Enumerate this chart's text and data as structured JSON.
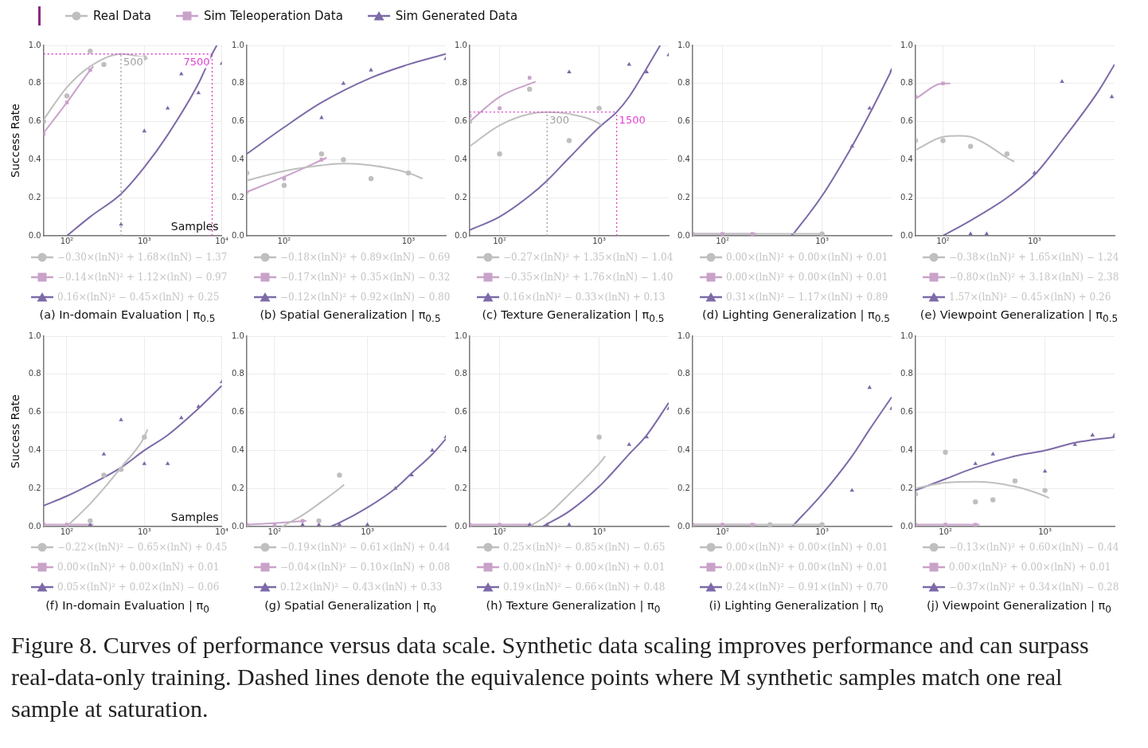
{
  "chart_data": [
    {
      "type": "scatter",
      "title": "(a) In-domain Evaluation | π$_{0.5}$",
      "ylabel": "Success Rate",
      "xlabel": "Samples",
      "log": "x",
      "xlim": [
        50,
        10000
      ],
      "xticks": [
        {
          "value": 100,
          "label": "10²"
        },
        {
          "value": 1000,
          "label": "10³"
        },
        {
          "value": 10000,
          "label": "10⁴"
        }
      ],
      "ylim": [
        0,
        1
      ],
      "yticks": [
        {
          "value": 0,
          "label": "0.0"
        },
        {
          "value": 0.2,
          "label": "0.2"
        },
        {
          "value": 0.4,
          "label": "0.4"
        },
        {
          "value": 0.6,
          "label": "0.6"
        },
        {
          "value": 0.8,
          "label": "0.8"
        },
        {
          "value": 1,
          "label": "1.0"
        }
      ],
      "grid": true,
      "legend": "bottom",
      "ref_lines": [
        {
          "axis": "y",
          "value": 0.955,
          "color": "#e040d0",
          "line_style": "dotted"
        },
        {
          "axis": "x",
          "value": 500,
          "label": "500",
          "color": "#a0a0a0",
          "line_style": "dotted"
        },
        {
          "axis": "x",
          "value": 7500,
          "label": "7500",
          "color": "#e040d0",
          "line_style": "dotted"
        }
      ],
      "annotations": [
        "Figure 8. Curves of performance versus data scale. Synthetic data scaling improves performance and can surpass real-data-only training. Dashed lines denote the equivalence points where M synthetic samples match one real sample at saturation."
      ],
      "series": [
        {
          "type": "scatter",
          "name": "Real Data",
          "color": "#bfbfbf",
          "marker": "circle",
          "x": [
            50,
            100,
            200,
            300,
            1000
          ],
          "values": [
            0.6,
            0.735,
            0.97,
            0.9,
            0.935
          ]
        },
        {
          "type": "scatter",
          "name": "Sim Teleoperation Data",
          "color": "#c9a2c9",
          "marker": "square",
          "x": [
            50,
            100,
            200
          ],
          "values": [
            0.535,
            0.7,
            0.87
          ]
        },
        {
          "type": "scatter",
          "name": "Sim Generated Data",
          "color": "#7d6aa8",
          "marker": "triangle",
          "x": [
            500,
            1000,
            2000,
            3000,
            5000,
            10000
          ],
          "values": [
            0.06,
            0.55,
            0.67,
            0.85,
            0.75,
            0.905
          ]
        },
        {
          "type": "line",
          "name": "−0.30×(lnN)² + 1.68×(lnN) − 1.37",
          "color": "#bfbfbf",
          "x": [
            50,
            100,
            200,
            500,
            1000,
            1100
          ],
          "values": [
            0.61,
            0.78,
            0.89,
            0.955,
            0.935,
            0.93
          ]
        },
        {
          "type": "line",
          "name": "−0.14×(lnN)² + 1.12×(lnN) − 0.97",
          "color": "#c9a2c9",
          "x": [
            50,
            100,
            200,
            220
          ],
          "values": [
            0.54,
            0.7,
            0.87,
            0.89
          ]
        },
        {
          "type": "line",
          "name": "0.16×(lnN)² − 0.45×(lnN) + 0.25",
          "color": "#7d6aa8",
          "x": [
            100,
            200,
            500,
            1000,
            2000,
            5000,
            7500,
            8600
          ],
          "values": [
            0,
            0.1,
            0.22,
            0.36,
            0.53,
            0.8,
            0.955,
            1
          ]
        }
      ]
    },
    {
      "type": "scatter",
      "title": "(b) Spatial Generalization | π$_{0.5}$",
      "log": "x",
      "xlim": [
        50,
        2000
      ],
      "xticks": [
        {
          "value": 100,
          "label": "10²"
        },
        {
          "value": 1000,
          "label": "10³"
        }
      ],
      "ylim": [
        0,
        1
      ],
      "yticks": [
        {
          "value": 0,
          "label": "0.0"
        },
        {
          "value": 0.2,
          "label": "0.2"
        },
        {
          "value": 0.4,
          "label": "0.4"
        },
        {
          "value": 0.6,
          "label": "0.6"
        },
        {
          "value": 0.8,
          "label": "0.8"
        },
        {
          "value": 1,
          "label": "1.0"
        }
      ],
      "grid": true,
      "legend": "bottom",
      "series": [
        {
          "type": "scatter",
          "color": "#bfbfbf",
          "marker": "circle",
          "x": [
            50,
            100,
            200,
            300,
            500,
            1000
          ],
          "values": [
            0.33,
            0.265,
            0.43,
            0.4,
            0.3,
            0.33
          ]
        },
        {
          "type": "scatter",
          "color": "#c9a2c9",
          "marker": "square",
          "x": [
            50,
            100,
            200
          ],
          "values": [
            0.23,
            0.3,
            0.4
          ]
        },
        {
          "type": "scatter",
          "color": "#7d6aa8",
          "marker": "triangle",
          "x": [
            200,
            300,
            500,
            2000
          ],
          "values": [
            0.62,
            0.8,
            0.87,
            0.93
          ]
        },
        {
          "type": "line",
          "name": "−0.18×(lnN)² + 0.89×(lnN) − 0.69",
          "color": "#bfbfbf",
          "x": [
            50,
            100,
            200,
            300,
            500,
            1000,
            1300
          ],
          "values": [
            0.29,
            0.34,
            0.37,
            0.38,
            0.37,
            0.33,
            0.3
          ]
        },
        {
          "type": "line",
          "name": "−0.17×(lnN)² + 0.35×(lnN) − 0.32",
          "color": "#c9a2c9",
          "x": [
            50,
            100,
            220
          ],
          "values": [
            0.23,
            0.31,
            0.41
          ]
        },
        {
          "type": "line",
          "name": "−0.12×(lnN)² + 0.92×(lnN) − 0.80",
          "color": "#7d6aa8",
          "x": [
            50,
            100,
            200,
            500,
            1000,
            2000
          ],
          "values": [
            0.43,
            0.57,
            0.7,
            0.83,
            0.9,
            0.955
          ]
        }
      ]
    },
    {
      "type": "scatter",
      "title": "(c) Texture Generalization | π$_{0.5}$",
      "log": "x",
      "xlim": [
        50,
        5000
      ],
      "xticks": [
        {
          "value": 100,
          "label": "10²"
        },
        {
          "value": 1000,
          "label": "10³"
        }
      ],
      "ylim": [
        0,
        1
      ],
      "yticks": [
        {
          "value": 0,
          "label": "0.0"
        },
        {
          "value": 0.2,
          "label": "0.2"
        },
        {
          "value": 0.4,
          "label": "0.4"
        },
        {
          "value": 0.6,
          "label": "0.6"
        },
        {
          "value": 0.8,
          "label": "0.8"
        },
        {
          "value": 1,
          "label": "1.0"
        }
      ],
      "grid": true,
      "legend": "bottom",
      "ref_lines": [
        {
          "axis": "y",
          "value": 0.65,
          "color": "#e040d0",
          "line_style": "dotted"
        },
        {
          "axis": "x",
          "value": 300,
          "label": "300",
          "color": "#a0a0a0",
          "line_style": "dotted"
        },
        {
          "axis": "x",
          "value": 1500,
          "label": "1500",
          "color": "#e040d0",
          "line_style": "dotted"
        }
      ],
      "series": [
        {
          "type": "scatter",
          "color": "#bfbfbf",
          "marker": "circle",
          "x": [
            50,
            100,
            200,
            500,
            1000
          ],
          "values": [
            0.6,
            0.43,
            0.77,
            0.5,
            0.67
          ]
        },
        {
          "type": "scatter",
          "color": "#c9a2c9",
          "marker": "square",
          "x": [
            50,
            100,
            200
          ],
          "values": [
            0.63,
            0.67,
            0.83
          ]
        },
        {
          "type": "scatter",
          "color": "#7d6aa8",
          "marker": "triangle",
          "x": [
            500,
            2000,
            3000,
            5000
          ],
          "values": [
            0.86,
            0.9,
            0.86,
            0.95
          ]
        },
        {
          "type": "line",
          "name": "−0.27×(lnN)² + 1.35×(lnN) − 1.04",
          "color": "#bfbfbf",
          "x": [
            50,
            100,
            200,
            300,
            500,
            1000,
            1050
          ],
          "values": [
            0.47,
            0.58,
            0.64,
            0.65,
            0.64,
            0.59,
            0.58
          ]
        },
        {
          "type": "line",
          "name": "−0.35×(lnN)² + 1.76×(lnN) − 1.40",
          "color": "#c9a2c9",
          "x": [
            50,
            100,
            230
          ],
          "values": [
            0.6,
            0.73,
            0.81
          ]
        },
        {
          "type": "line",
          "name": "0.16×(lnN)² − 0.33×(lnN) + 0.13",
          "color": "#7d6aa8",
          "x": [
            50,
            100,
            200,
            300,
            500,
            1000,
            1500,
            2000,
            3000,
            4100
          ],
          "values": [
            0.03,
            0.1,
            0.21,
            0.29,
            0.41,
            0.57,
            0.65,
            0.73,
            0.88,
            1
          ]
        }
      ]
    },
    {
      "type": "scatter",
      "title": "(d) Lighting Generalization | π$_{0.5}$",
      "log": "x",
      "xlim": [
        50,
        5000
      ],
      "xticks": [
        {
          "value": 100,
          "label": "10²"
        },
        {
          "value": 1000,
          "label": "10³"
        }
      ],
      "ylim": [
        0,
        1
      ],
      "yticks": [
        {
          "value": 0,
          "label": "0.0"
        },
        {
          "value": 0.2,
          "label": "0.2"
        },
        {
          "value": 0.4,
          "label": "0.4"
        },
        {
          "value": 0.6,
          "label": "0.6"
        },
        {
          "value": 0.8,
          "label": "0.8"
        },
        {
          "value": 1,
          "label": "1.0"
        }
      ],
      "grid": true,
      "legend": "bottom",
      "series": [
        {
          "type": "scatter",
          "color": "#bfbfbf",
          "marker": "circle",
          "x": [
            1000
          ],
          "values": [
            0.01
          ]
        },
        {
          "type": "scatter",
          "color": "#c9a2c9",
          "marker": "square",
          "x": [
            50,
            100,
            200
          ],
          "values": [
            0.01,
            0.01,
            0.01
          ]
        },
        {
          "type": "scatter",
          "color": "#7d6aa8",
          "marker": "triangle",
          "x": [
            500,
            2000,
            3000,
            5000
          ],
          "values": [
            0,
            0.47,
            0.67,
            0.87
          ]
        },
        {
          "type": "line",
          "name": "0.00×(lnN)² + 0.00×(lnN) + 0.01",
          "color": "#bfbfbf",
          "x": [
            50,
            1000
          ],
          "values": [
            0.01,
            0.01
          ]
        },
        {
          "type": "line",
          "name": "0.00×(lnN)² + 0.00×(lnN) + 0.01",
          "color": "#c9a2c9",
          "x": [
            50,
            220
          ],
          "values": [
            0.01,
            0.01
          ]
        },
        {
          "type": "line",
          "name": "0.31×(lnN)² − 1.17×(lnN) + 0.89",
          "color": "#7d6aa8",
          "x": [
            500,
            1000,
            2000,
            3000,
            5000
          ],
          "values": [
            0,
            0.21,
            0.47,
            0.64,
            0.87
          ]
        }
      ]
    },
    {
      "type": "scatter",
      "title": "(e) Viewpoint Generalization | π$_{0.5}$",
      "log": "x",
      "xlim": [
        50,
        7500
      ],
      "xticks": [
        {
          "value": 100,
          "label": "10²"
        },
        {
          "value": 1000,
          "label": "10³"
        }
      ],
      "ylim": [
        0,
        1
      ],
      "yticks": [
        {
          "value": 0,
          "label": "0.0"
        },
        {
          "value": 0.2,
          "label": "0.2"
        },
        {
          "value": 0.4,
          "label": "0.4"
        },
        {
          "value": 0.6,
          "label": "0.6"
        },
        {
          "value": 0.8,
          "label": "0.8"
        },
        {
          "value": 1,
          "label": "1.0"
        }
      ],
      "grid": true,
      "legend": "bottom",
      "series": [
        {
          "type": "scatter",
          "color": "#bfbfbf",
          "marker": "circle",
          "x": [
            50,
            100,
            200,
            500
          ],
          "values": [
            0.5,
            0.5,
            0.47,
            0.43
          ]
        },
        {
          "type": "scatter",
          "color": "#c9a2c9",
          "marker": "square",
          "x": [
            50,
            100
          ],
          "values": [
            0.73,
            0.8
          ]
        },
        {
          "type": "scatter",
          "color": "#7d6aa8",
          "marker": "triangle",
          "x": [
            200,
            300,
            1000,
            2000,
            7000
          ],
          "values": [
            0.01,
            0.01,
            0.33,
            0.81,
            0.73
          ]
        },
        {
          "type": "line",
          "name": "−0.38×(lnN)² + 1.65×(lnN) − 1.24",
          "color": "#bfbfbf",
          "x": [
            50,
            100,
            150,
            200,
            300,
            500,
            600
          ],
          "values": [
            0.45,
            0.52,
            0.525,
            0.52,
            0.48,
            0.41,
            0.39
          ]
        },
        {
          "type": "line",
          "name": "−0.80×(lnN)² + 3.18×(lnN) − 2.38",
          "color": "#c9a2c9",
          "x": [
            50,
            100,
            120
          ],
          "values": [
            0.72,
            0.8,
            0.8
          ]
        },
        {
          "type": "line",
          "name": "1.57×(lnN)² − 0.45×(lnN) + 0.26",
          "color": "#7d6aa8",
          "x": [
            100,
            200,
            500,
            1000,
            2000,
            5000,
            7500
          ],
          "values": [
            0,
            0.08,
            0.2,
            0.32,
            0.5,
            0.76,
            0.9
          ]
        }
      ]
    },
    {
      "type": "scatter",
      "title": "(f) In-domain Evaluation | π$_{0}$",
      "ylabel": "Success Rate",
      "xlabel": "Samples",
      "log": "x",
      "xlim": [
        50,
        10000
      ],
      "xticks": [
        {
          "value": 100,
          "label": "10²"
        },
        {
          "value": 1000,
          "label": "10³"
        },
        {
          "value": 10000,
          "label": "10⁴"
        }
      ],
      "ylim": [
        0,
        1
      ],
      "yticks": [
        {
          "value": 0,
          "label": "0.0"
        },
        {
          "value": 0.2,
          "label": "0.2"
        },
        {
          "value": 0.4,
          "label": "0.4"
        },
        {
          "value": 0.6,
          "label": "0.6"
        },
        {
          "value": 0.8,
          "label": "0.8"
        },
        {
          "value": 1,
          "label": "1.0"
        }
      ],
      "grid": true,
      "legend": "bottom",
      "series": [
        {
          "type": "scatter",
          "color": "#bfbfbf",
          "marker": "circle",
          "x": [
            200,
            300,
            500,
            1000
          ],
          "values": [
            0.03,
            0.27,
            0.3,
            0.47
          ]
        },
        {
          "type": "scatter",
          "color": "#c9a2c9",
          "marker": "square",
          "x": [
            50,
            100
          ],
          "values": [
            0.01,
            0.01
          ]
        },
        {
          "type": "scatter",
          "color": "#7d6aa8",
          "marker": "triangle",
          "x": [
            200,
            300,
            500,
            1000,
            2000,
            3000,
            5000,
            10000
          ],
          "values": [
            0.01,
            0.38,
            0.56,
            0.33,
            0.33,
            0.57,
            0.63,
            0.76
          ]
        },
        {
          "type": "line",
          "name": "−0.22×(lnN)² − 0.65×(lnN) + 0.45",
          "color": "#bfbfbf",
          "x": [
            100,
            200,
            300,
            500,
            1000,
            1100
          ],
          "values": [
            0,
            0.12,
            0.2,
            0.31,
            0.47,
            0.51
          ]
        },
        {
          "type": "line",
          "name": "0.00×(lnN)² + 0.00×(lnN) + 0.01",
          "color": "#c9a2c9",
          "x": [
            50,
            220
          ],
          "values": [
            0.01,
            0.01
          ]
        },
        {
          "type": "line",
          "name": "0.05×(lnN)² + 0.02×(lnN) − 0.06",
          "color": "#7d6aa8",
          "x": [
            50,
            100,
            200,
            500,
            1000,
            2000,
            5000,
            10000
          ],
          "values": [
            0.11,
            0.16,
            0.22,
            0.31,
            0.4,
            0.48,
            0.62,
            0.74
          ]
        }
      ]
    },
    {
      "type": "scatter",
      "title": "(g) Spatial Generalization | π$_{0}$",
      "log": "x",
      "xlim": [
        50,
        7000
      ],
      "xticks": [
        {
          "value": 100,
          "label": "10²"
        },
        {
          "value": 1000,
          "label": "10³"
        }
      ],
      "ylim": [
        0,
        1
      ],
      "yticks": [
        {
          "value": 0,
          "label": "0.0"
        },
        {
          "value": 0.2,
          "label": "0.2"
        },
        {
          "value": 0.4,
          "label": "0.4"
        },
        {
          "value": 0.6,
          "label": "0.6"
        },
        {
          "value": 0.8,
          "label": "0.8"
        },
        {
          "value": 1,
          "label": "1.0"
        }
      ],
      "grid": true,
      "legend": "bottom",
      "series": [
        {
          "type": "scatter",
          "color": "#bfbfbf",
          "marker": "circle",
          "x": [
            300,
            500
          ],
          "values": [
            0.03,
            0.27
          ]
        },
        {
          "type": "scatter",
          "color": "#c9a2c9",
          "marker": "square",
          "x": [
            50,
            100,
            200
          ],
          "values": [
            0.01,
            0.01,
            0.03
          ]
        },
        {
          "type": "scatter",
          "color": "#7d6aa8",
          "marker": "triangle",
          "x": [
            200,
            300,
            500,
            1000,
            2000,
            3000,
            5000,
            7000
          ],
          "values": [
            0.01,
            0.01,
            0.01,
            0.01,
            0.2,
            0.27,
            0.4,
            0.47
          ]
        },
        {
          "type": "line",
          "name": "−0.19×(lnN)² − 0.61×(lnN) + 0.44",
          "color": "#bfbfbf",
          "x": [
            120,
            200,
            300,
            500,
            560
          ],
          "values": [
            0,
            0.06,
            0.12,
            0.2,
            0.22
          ]
        },
        {
          "type": "line",
          "name": "−0.04×(lnN)² − 0.10×(lnN) + 0.08",
          "color": "#c9a2c9",
          "x": [
            50,
            100,
            220
          ],
          "values": [
            0.01,
            0.018,
            0.03
          ]
        },
        {
          "type": "line",
          "name": "0.12×(lnN)² − 0.43×(lnN) + 0.33",
          "color": "#7d6aa8",
          "x": [
            400,
            500,
            1000,
            2000,
            3000,
            5000,
            7000
          ],
          "values": [
            0,
            0.02,
            0.1,
            0.2,
            0.28,
            0.38,
            0.46
          ]
        }
      ]
    },
    {
      "type": "scatter",
      "title": "(h) Texture Generalization | π$_{0}$",
      "log": "x",
      "xlim": [
        50,
        5000
      ],
      "xticks": [
        {
          "value": 100,
          "label": "10²"
        },
        {
          "value": 1000,
          "label": "10³"
        }
      ],
      "ylim": [
        0,
        1
      ],
      "yticks": [
        {
          "value": 0,
          "label": "0.0"
        },
        {
          "value": 0.2,
          "label": "0.2"
        },
        {
          "value": 0.4,
          "label": "0.4"
        },
        {
          "value": 0.6,
          "label": "0.6"
        },
        {
          "value": 0.8,
          "label": "0.8"
        },
        {
          "value": 1,
          "label": "1.0"
        }
      ],
      "grid": true,
      "legend": "bottom",
      "series": [
        {
          "type": "scatter",
          "color": "#bfbfbf",
          "marker": "circle",
          "x": [
            1000
          ],
          "values": [
            0.47
          ]
        },
        {
          "type": "scatter",
          "color": "#c9a2c9",
          "marker": "square",
          "x": [
            50,
            100
          ],
          "values": [
            0.01,
            0.01
          ]
        },
        {
          "type": "scatter",
          "color": "#7d6aa8",
          "marker": "triangle",
          "x": [
            200,
            300,
            500,
            2000,
            3000,
            5000
          ],
          "values": [
            0.01,
            0.01,
            0.01,
            0.43,
            0.47,
            0.62
          ]
        },
        {
          "type": "line",
          "name": "0.25×(lnN)² − 0.85×(lnN) − 0.65",
          "color": "#bfbfbf",
          "x": [
            200,
            300,
            500,
            1000,
            1150
          ],
          "values": [
            0,
            0.06,
            0.17,
            0.33,
            0.37
          ]
        },
        {
          "type": "line",
          "name": "0.00×(lnN)² + 0.00×(lnN) + 0.01",
          "color": "#c9a2c9",
          "x": [
            50,
            220
          ],
          "values": [
            0.01,
            0.01
          ]
        },
        {
          "type": "line",
          "name": "0.19×(lnN)² − 0.66×(lnN) + 0.48",
          "color": "#7d6aa8",
          "x": [
            270,
            500,
            1000,
            2000,
            3000,
            5000
          ],
          "values": [
            0,
            0.08,
            0.21,
            0.38,
            0.48,
            0.65
          ]
        }
      ]
    },
    {
      "type": "scatter",
      "title": "(i) Lighting Generalization | π$_{0}$",
      "log": "x",
      "xlim": [
        50,
        5000
      ],
      "xticks": [
        {
          "value": 100,
          "label": "10²"
        },
        {
          "value": 1000,
          "label": "10³"
        }
      ],
      "ylim": [
        0,
        1
      ],
      "yticks": [
        {
          "value": 0,
          "label": "0.0"
        },
        {
          "value": 0.2,
          "label": "0.2"
        },
        {
          "value": 0.4,
          "label": "0.4"
        },
        {
          "value": 0.6,
          "label": "0.6"
        },
        {
          "value": 0.8,
          "label": "0.8"
        },
        {
          "value": 1,
          "label": "1.0"
        }
      ],
      "grid": true,
      "legend": "bottom",
      "series": [
        {
          "type": "scatter",
          "color": "#bfbfbf",
          "marker": "circle",
          "x": [
            300,
            1000
          ],
          "values": [
            0.01,
            0.01
          ]
        },
        {
          "type": "scatter",
          "color": "#c9a2c9",
          "marker": "square",
          "x": [
            50,
            100,
            200
          ],
          "values": [
            0.01,
            0.01,
            0.01
          ]
        },
        {
          "type": "scatter",
          "color": "#7d6aa8",
          "marker": "triangle",
          "x": [
            2000,
            3000,
            5000
          ],
          "values": [
            0.19,
            0.73,
            0.62
          ]
        },
        {
          "type": "line",
          "name": "0.00×(lnN)² + 0.00×(lnN) + 0.01",
          "color": "#bfbfbf",
          "x": [
            50,
            1000
          ],
          "values": [
            0.01,
            0.01
          ]
        },
        {
          "type": "line",
          "name": "0.00×(lnN)² + 0.00×(lnN) + 0.01",
          "color": "#c9a2c9",
          "x": [
            50,
            220
          ],
          "values": [
            0.01,
            0.01
          ]
        },
        {
          "type": "line",
          "name": "0.24×(lnN)² − 0.91×(lnN) + 0.70",
          "color": "#7d6aa8",
          "x": [
            500,
            1000,
            2000,
            3000,
            5000
          ],
          "values": [
            0,
            0.17,
            0.37,
            0.51,
            0.68
          ]
        }
      ]
    },
    {
      "type": "scatter",
      "title": "(j) Viewpoint Generalization | π$_{0}$",
      "log": "x",
      "xlim": [
        50,
        5000
      ],
      "xticks": [
        {
          "value": 100,
          "label": "10²"
        },
        {
          "value": 1000,
          "label": "10³"
        }
      ],
      "ylim": [
        0,
        1
      ],
      "yticks": [
        {
          "value": 0,
          "label": "0.0"
        },
        {
          "value": 0.2,
          "label": "0.2"
        },
        {
          "value": 0.4,
          "label": "0.4"
        },
        {
          "value": 0.6,
          "label": "0.6"
        },
        {
          "value": 0.8,
          "label": "0.8"
        },
        {
          "value": 1,
          "label": "1.0"
        }
      ],
      "grid": true,
      "legend": "bottom",
      "series": [
        {
          "type": "scatter",
          "color": "#bfbfbf",
          "marker": "circle",
          "x": [
            50,
            100,
            200,
            300,
            500,
            1000
          ],
          "values": [
            0.17,
            0.39,
            0.13,
            0.14,
            0.24,
            0.19
          ]
        },
        {
          "type": "scatter",
          "color": "#c9a2c9",
          "marker": "square",
          "x": [
            50,
            100,
            200
          ],
          "values": [
            0.01,
            0.01,
            0.01
          ]
        },
        {
          "type": "scatter",
          "color": "#7d6aa8",
          "marker": "triangle",
          "x": [
            200,
            300,
            1000,
            2000,
            3000,
            5000
          ],
          "values": [
            0.33,
            0.38,
            0.29,
            0.43,
            0.48,
            0.48
          ]
        },
        {
          "type": "line",
          "name": "−0.13×(lnN)² + 0.60×(lnN) − 0.44",
          "color": "#bfbfbf",
          "x": [
            50,
            100,
            200,
            500,
            1000,
            1100
          ],
          "values": [
            0.2,
            0.23,
            0.235,
            0.21,
            0.16,
            0.15
          ]
        },
        {
          "type": "line",
          "name": "0.00×(lnN)² + 0.00×(lnN) + 0.01",
          "color": "#c9a2c9",
          "x": [
            50,
            220
          ],
          "values": [
            0.01,
            0.01
          ]
        },
        {
          "type": "line",
          "name": "−0.37×(lnN)² + 0.34×(lnN) − 0.28",
          "color": "#7d6aa8",
          "x": [
            50,
            100,
            200,
            500,
            1000,
            2000,
            5000
          ],
          "values": [
            0.19,
            0.25,
            0.31,
            0.37,
            0.4,
            0.44,
            0.47
          ]
        }
      ]
    }
  ]
}
